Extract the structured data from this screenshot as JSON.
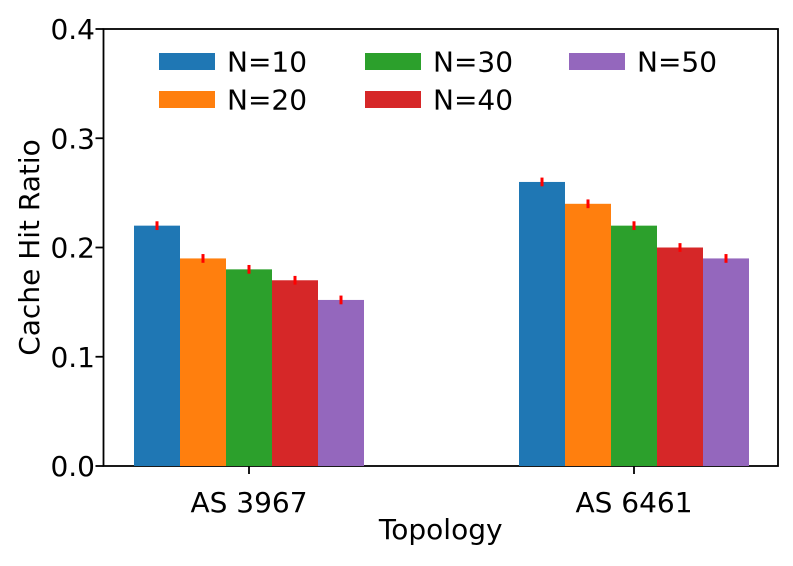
{
  "chart_data": {
    "type": "bar",
    "title": "",
    "xlabel": "Topology",
    "ylabel": "Cache Hit Ratio",
    "categories": [
      "AS 3967",
      "AS 6461"
    ],
    "series": [
      {
        "name": "N=10",
        "color": "#1f77b4",
        "values": [
          0.22,
          0.26
        ]
      },
      {
        "name": "N=20",
        "color": "#ff7f0e",
        "values": [
          0.19,
          0.24
        ]
      },
      {
        "name": "N=30",
        "color": "#2ca02c",
        "values": [
          0.18,
          0.22
        ]
      },
      {
        "name": "N=40",
        "color": "#d62728",
        "values": [
          0.17,
          0.2
        ]
      },
      {
        "name": "N=50",
        "color": "#9467bd",
        "values": [
          0.152,
          0.19
        ]
      }
    ],
    "error_bars": {
      "color": "#ff0000",
      "yerr": 0.004
    },
    "ylim": [
      0.0,
      0.4
    ],
    "yticks": [
      "0.0",
      "0.1",
      "0.2",
      "0.3",
      "0.4"
    ],
    "ytick_values": [
      0.0,
      0.1,
      0.2,
      0.3,
      0.4
    ],
    "grid": false,
    "legend": {
      "location": "upper-left-inside",
      "columns": 3,
      "order": "column-major",
      "frame": false
    },
    "background_color": "#ffffff",
    "axis_color": "#000000"
  }
}
